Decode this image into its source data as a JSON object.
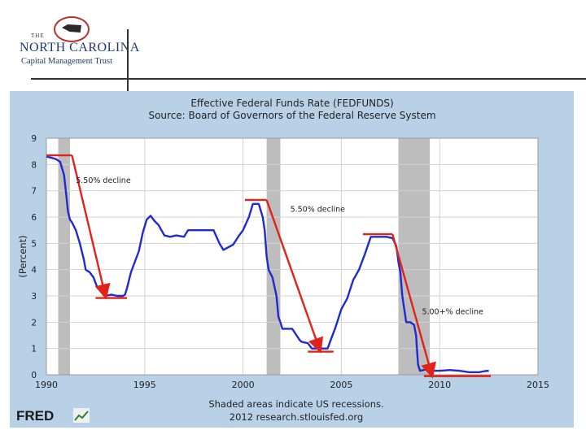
{
  "logo": {
    "line1": "THE",
    "line2": "NORTH CAROLINA",
    "line3": "Capital Management Trust"
  },
  "chart_data": {
    "type": "line",
    "title": "Effective Federal Funds Rate (FEDFUNDS)",
    "subtitle": "Source: Board of Governors of the Federal Reserve System",
    "ylabel": "(Percent)",
    "xlabel": "",
    "footer1": "Shaded areas indicate US recessions.",
    "footer2": "2012 research.stlouisfed.org",
    "brand": "FRED",
    "xlim": [
      1990,
      2015
    ],
    "ylim": [
      0,
      9
    ],
    "xticks": [
      "1990",
      "1995",
      "2000",
      "2005",
      "2010",
      "2015"
    ],
    "yticks": [
      "0",
      "1",
      "2",
      "3",
      "4",
      "5",
      "6",
      "7",
      "8",
      "9"
    ],
    "grid": true,
    "colors": {
      "line": "#1f2bcf",
      "annotation": "#e0221b",
      "recession": "#bdbdbd",
      "plot_bg": "#ffffff",
      "panel_bg": "#b9d1e7"
    },
    "recessions": [
      [
        1990.6,
        1991.2
      ],
      [
        2001.2,
        2001.9
      ],
      [
        2007.9,
        2009.5
      ]
    ],
    "series": [
      {
        "name": "FEDFUNDS",
        "x": [
          1990.0,
          1990.3,
          1990.5,
          1990.7,
          1990.9,
          1991.0,
          1991.1,
          1991.2,
          1991.3,
          1991.5,
          1991.7,
          1991.9,
          1992.0,
          1992.2,
          1992.4,
          1992.6,
          1992.8,
          1993.0,
          1993.3,
          1993.6,
          1993.9,
          1994.0,
          1994.1,
          1994.3,
          1994.5,
          1994.7,
          1994.9,
          1995.1,
          1995.3,
          1995.5,
          1995.7,
          1996.0,
          1996.3,
          1996.6,
          1997.0,
          1997.2,
          1997.5,
          1998.0,
          1998.5,
          1998.8,
          1999.0,
          1999.5,
          1999.8,
          2000.0,
          2000.3,
          2000.5,
          2000.8,
          2001.0,
          2001.1,
          2001.2,
          2001.3,
          2001.5,
          2001.7,
          2001.8,
          2001.9,
          2002.0,
          2002.5,
          2002.9,
          2003.0,
          2003.3,
          2003.5,
          2003.7,
          2004.0,
          2004.3,
          2004.5,
          2004.7,
          2005.0,
          2005.3,
          2005.6,
          2005.9,
          2006.2,
          2006.5,
          2006.8,
          2007.0,
          2007.3,
          2007.6,
          2007.8,
          2007.9,
          2008.0,
          2008.1,
          2008.2,
          2008.3,
          2008.5,
          2008.7,
          2008.8,
          2008.9,
          2009.0,
          2009.3,
          2009.6,
          2010.0,
          2010.5,
          2011.0,
          2011.5,
          2012.0,
          2012.3,
          2012.5
        ],
        "values": [
          8.3,
          8.25,
          8.2,
          8.1,
          7.6,
          6.9,
          6.2,
          5.9,
          5.8,
          5.5,
          5.0,
          4.4,
          4.0,
          3.9,
          3.7,
          3.3,
          3.2,
          3.0,
          3.05,
          3.0,
          3.0,
          3.05,
          3.3,
          3.9,
          4.3,
          4.7,
          5.4,
          5.9,
          6.05,
          5.85,
          5.7,
          5.3,
          5.25,
          5.3,
          5.25,
          5.5,
          5.5,
          5.5,
          5.5,
          5.0,
          4.75,
          4.95,
          5.3,
          5.5,
          6.0,
          6.5,
          6.5,
          6.0,
          5.5,
          4.5,
          4.0,
          3.7,
          3.0,
          2.2,
          2.0,
          1.75,
          1.75,
          1.3,
          1.25,
          1.2,
          1.0,
          1.0,
          1.0,
          1.0,
          1.4,
          1.8,
          2.5,
          2.9,
          3.6,
          4.0,
          4.6,
          5.25,
          5.25,
          5.25,
          5.25,
          5.2,
          4.9,
          4.3,
          3.9,
          3.0,
          2.5,
          2.0,
          2.0,
          1.9,
          1.5,
          0.4,
          0.15,
          0.2,
          0.15,
          0.15,
          0.18,
          0.15,
          0.1,
          0.1,
          0.14,
          0.15
        ]
      }
    ],
    "annotations": [
      {
        "text": "5.50% decline",
        "x": 1991.5,
        "y": 7.3
      },
      {
        "text": "5.50% decline",
        "x": 2002.4,
        "y": 6.2
      },
      {
        "text": "5.00+% decline",
        "x": 2009.1,
        "y": 2.3
      }
    ],
    "decline_lines": [
      {
        "top": [
          1990.0,
          8.35,
          1991.3
        ],
        "bottom": [
          1992.5,
          2.92,
          1994.1
        ],
        "arrow_from": [
          1991.3,
          8.35
        ],
        "arrow_to": [
          1993.0,
          3.0
        ]
      },
      {
        "top": [
          2000.1,
          6.65,
          2001.2
        ],
        "bottom": [
          2003.3,
          0.88,
          2004.6
        ],
        "arrow_from": [
          2001.2,
          6.65
        ],
        "arrow_to": [
          2003.9,
          0.95
        ]
      },
      {
        "top": [
          2006.1,
          5.35,
          2007.6
        ],
        "bottom": [
          2009.2,
          -0.05,
          2012.6
        ],
        "arrow_from": [
          2007.6,
          5.35
        ],
        "arrow_to": [
          2009.6,
          0.0
        ]
      }
    ]
  }
}
